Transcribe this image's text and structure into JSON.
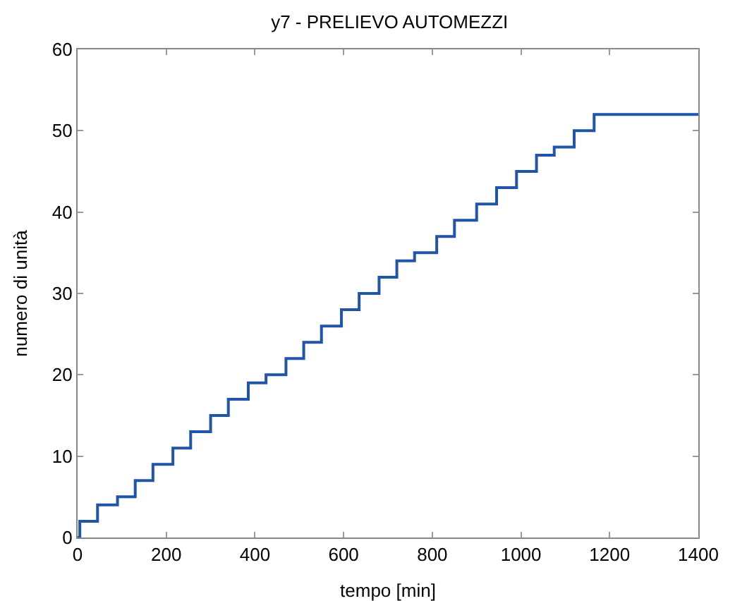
{
  "chart_data": {
    "type": "step",
    "title": "y7 - PRELIEVO AUTOMEZZI",
    "xlabel": "tempo [min]",
    "ylabel": "numero di unità",
    "x": [
      0,
      5,
      45,
      90,
      130,
      170,
      215,
      255,
      300,
      340,
      385,
      425,
      470,
      510,
      550,
      595,
      635,
      680,
      720,
      760,
      810,
      850,
      900,
      945,
      990,
      1035,
      1075,
      1120,
      1165,
      1400
    ],
    "series": [
      {
        "color": "#2155a8",
        "values": [
          0,
          2,
          4,
          5,
          7,
          9,
          11,
          13,
          15,
          17,
          19,
          20,
          22,
          24,
          26,
          28,
          30,
          32,
          34,
          35,
          37,
          39,
          41,
          43,
          45,
          47,
          48,
          50,
          52,
          52
        ]
      }
    ],
    "xlim": [
      0,
      1400
    ],
    "ylim": [
      0,
      60
    ],
    "xticks": [
      0,
      200,
      400,
      600,
      800,
      1000,
      1200,
      1400
    ],
    "yticks": [
      0,
      10,
      20,
      30,
      40,
      50,
      60
    ],
    "grid": false,
    "line_style": "solid",
    "marker": "none"
  }
}
